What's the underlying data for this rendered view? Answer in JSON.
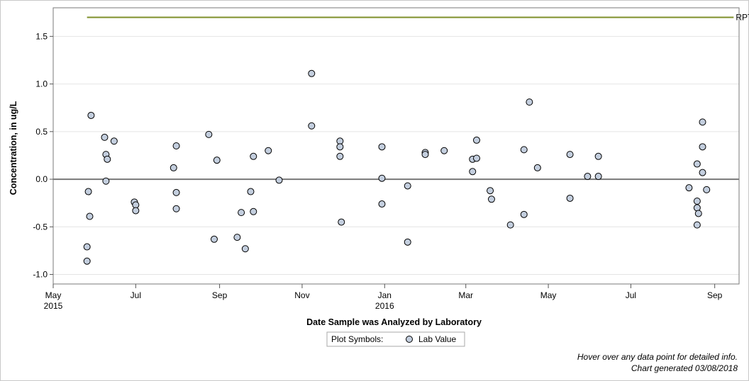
{
  "chart_data": {
    "type": "scatter",
    "xlabel": "Date Sample was Analyzed by Laboratory",
    "ylabel": "Concentration, in ug/L",
    "xlim": [
      "2015-05-01",
      "2016-09-19"
    ],
    "ylim": [
      -1.1,
      1.8
    ],
    "grid": "horizontal",
    "x_ticks": [
      {
        "date": "2015-05-01",
        "label": "May",
        "year": "2015"
      },
      {
        "date": "2015-07-01",
        "label": "Jul",
        "year": ""
      },
      {
        "date": "2015-09-01",
        "label": "Sep",
        "year": ""
      },
      {
        "date": "2015-11-01",
        "label": "Nov",
        "year": ""
      },
      {
        "date": "2016-01-01",
        "label": "Jan",
        "year": "2016"
      },
      {
        "date": "2016-03-01",
        "label": "Mar",
        "year": ""
      },
      {
        "date": "2016-05-01",
        "label": "May",
        "year": ""
      },
      {
        "date": "2016-07-01",
        "label": "Jul",
        "year": ""
      },
      {
        "date": "2016-09-01",
        "label": "Sep",
        "year": ""
      }
    ],
    "y_ticks": [
      {
        "value": -1.0,
        "label": "-1.0"
      },
      {
        "value": -0.5,
        "label": "-0.5"
      },
      {
        "value": 0.0,
        "label": "0.0"
      },
      {
        "value": 0.5,
        "label": "0.5"
      },
      {
        "value": 1.0,
        "label": "1.0"
      },
      {
        "value": 1.5,
        "label": "1.5"
      }
    ],
    "reference_lines": [
      {
        "label": "RPT Level",
        "value": 1.7,
        "from": "2015-05-26",
        "to": "2016-09-15",
        "color": "#7f8f2a"
      },
      {
        "label": "",
        "value": 0.0,
        "from": "2015-05-01",
        "to": "2016-09-19",
        "color": "#777777"
      }
    ],
    "legend": {
      "title": "Plot Symbols:",
      "entries": [
        "Lab Value"
      ],
      "placement": "bottom-center"
    },
    "series": [
      {
        "name": "Lab Value",
        "color": "#c3cede",
        "points": [
          {
            "x": "2015-05-26",
            "y": -0.71
          },
          {
            "x": "2015-05-26",
            "y": -0.86
          },
          {
            "x": "2015-05-27",
            "y": -0.13
          },
          {
            "x": "2015-05-28",
            "y": -0.39
          },
          {
            "x": "2015-05-29",
            "y": 0.67
          },
          {
            "x": "2015-06-08",
            "y": 0.44
          },
          {
            "x": "2015-06-09",
            "y": 0.26
          },
          {
            "x": "2015-06-09",
            "y": -0.02
          },
          {
            "x": "2015-06-10",
            "y": 0.21
          },
          {
            "x": "2015-06-15",
            "y": 0.4
          },
          {
            "x": "2015-06-30",
            "y": -0.24
          },
          {
            "x": "2015-07-01",
            "y": -0.27
          },
          {
            "x": "2015-07-01",
            "y": -0.33
          },
          {
            "x": "2015-07-29",
            "y": 0.12
          },
          {
            "x": "2015-07-31",
            "y": 0.35
          },
          {
            "x": "2015-07-31",
            "y": -0.14
          },
          {
            "x": "2015-07-31",
            "y": -0.31
          },
          {
            "x": "2015-08-24",
            "y": 0.47
          },
          {
            "x": "2015-08-28",
            "y": -0.63
          },
          {
            "x": "2015-08-30",
            "y": 0.2
          },
          {
            "x": "2015-09-14",
            "y": -0.61
          },
          {
            "x": "2015-09-17",
            "y": -0.35
          },
          {
            "x": "2015-09-20",
            "y": -0.73
          },
          {
            "x": "2015-09-24",
            "y": -0.13
          },
          {
            "x": "2015-09-26",
            "y": 0.24
          },
          {
            "x": "2015-09-26",
            "y": -0.34
          },
          {
            "x": "2015-10-07",
            "y": 0.3
          },
          {
            "x": "2015-10-15",
            "y": -0.01
          },
          {
            "x": "2015-11-08",
            "y": 1.11
          },
          {
            "x": "2015-11-08",
            "y": 0.56
          },
          {
            "x": "2015-11-29",
            "y": 0.4
          },
          {
            "x": "2015-11-29",
            "y": 0.34
          },
          {
            "x": "2015-11-29",
            "y": 0.24
          },
          {
            "x": "2015-11-30",
            "y": -0.45
          },
          {
            "x": "2015-12-30",
            "y": 0.34
          },
          {
            "x": "2015-12-30",
            "y": 0.01
          },
          {
            "x": "2015-12-30",
            "y": -0.26
          },
          {
            "x": "2016-01-18",
            "y": -0.07
          },
          {
            "x": "2016-01-18",
            "y": -0.66
          },
          {
            "x": "2016-01-31",
            "y": 0.28
          },
          {
            "x": "2016-01-31",
            "y": 0.26
          },
          {
            "x": "2016-02-14",
            "y": 0.3
          },
          {
            "x": "2016-03-06",
            "y": 0.21
          },
          {
            "x": "2016-03-06",
            "y": 0.08
          },
          {
            "x": "2016-03-09",
            "y": 0.41
          },
          {
            "x": "2016-03-09",
            "y": 0.22
          },
          {
            "x": "2016-03-19",
            "y": -0.12
          },
          {
            "x": "2016-03-20",
            "y": -0.21
          },
          {
            "x": "2016-04-03",
            "y": -0.48
          },
          {
            "x": "2016-04-13",
            "y": 0.31
          },
          {
            "x": "2016-04-13",
            "y": -0.37
          },
          {
            "x": "2016-04-17",
            "y": 0.81
          },
          {
            "x": "2016-04-23",
            "y": 0.12
          },
          {
            "x": "2016-05-17",
            "y": 0.26
          },
          {
            "x": "2016-05-17",
            "y": -0.2
          },
          {
            "x": "2016-05-30",
            "y": 0.03
          },
          {
            "x": "2016-06-07",
            "y": 0.24
          },
          {
            "x": "2016-06-07",
            "y": 0.03
          },
          {
            "x": "2016-08-13",
            "y": -0.09
          },
          {
            "x": "2016-08-19",
            "y": 0.16
          },
          {
            "x": "2016-08-19",
            "y": -0.23
          },
          {
            "x": "2016-08-19",
            "y": -0.3
          },
          {
            "x": "2016-08-19",
            "y": -0.48
          },
          {
            "x": "2016-08-20",
            "y": -0.36
          },
          {
            "x": "2016-08-23",
            "y": 0.6
          },
          {
            "x": "2016-08-23",
            "y": 0.34
          },
          {
            "x": "2016-08-23",
            "y": 0.07
          },
          {
            "x": "2016-08-26",
            "y": -0.11
          }
        ]
      }
    ]
  },
  "footer": {
    "hover_note": "Hover over any data point for detailed info.",
    "generated": "Chart generated 03/08/2018"
  }
}
